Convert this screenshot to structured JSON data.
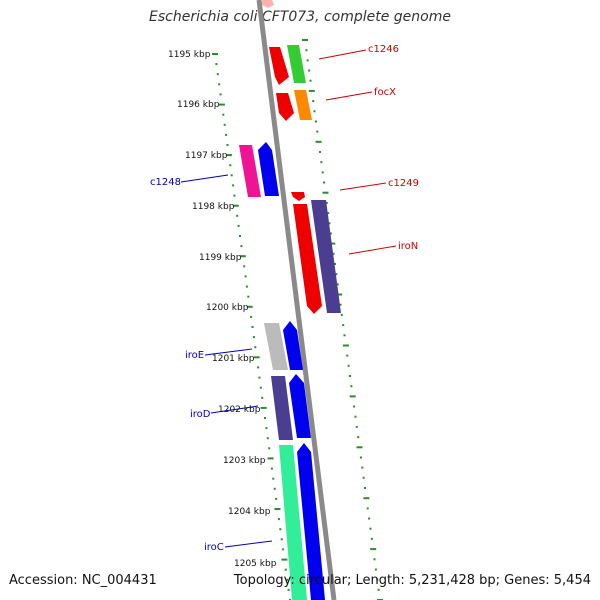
{
  "title": "Escherichia coli CFT073, complete genome",
  "footer": {
    "accession_label": "Accession: NC_004431",
    "summary": "Topology: circular; Length: 5,231,428 bp; Genes: 5,454"
  },
  "colors": {
    "backbone": "#8a8a8a",
    "tick": "#2e8b2e",
    "label_forward": "#cc0000",
    "label_reverse": "#0000bb"
  },
  "kbp_ticks": [
    "1195 kbp",
    "1196 kbp",
    "1197 kbp",
    "1198 kbp",
    "1199 kbp",
    "1200 kbp",
    "1201 kbp",
    "1202 kbp",
    "1203 kbp",
    "1204 kbp",
    "1205 kbp"
  ],
  "genes": [
    {
      "label": "c1246",
      "color": "#ee0000"
    },
    {
      "label": "focX",
      "color": "#ee0000"
    },
    {
      "label": "c1248",
      "color": "#ee1493"
    },
    {
      "label": "c1249",
      "color": "#ee0000"
    },
    {
      "label": "iroN",
      "color": "#4b3d8f"
    },
    {
      "label": "iroE",
      "color": "#0000ee"
    },
    {
      "label": "iroD",
      "color": "#0000ee"
    },
    {
      "label": "iroC",
      "color": "#0000ee"
    }
  ]
}
